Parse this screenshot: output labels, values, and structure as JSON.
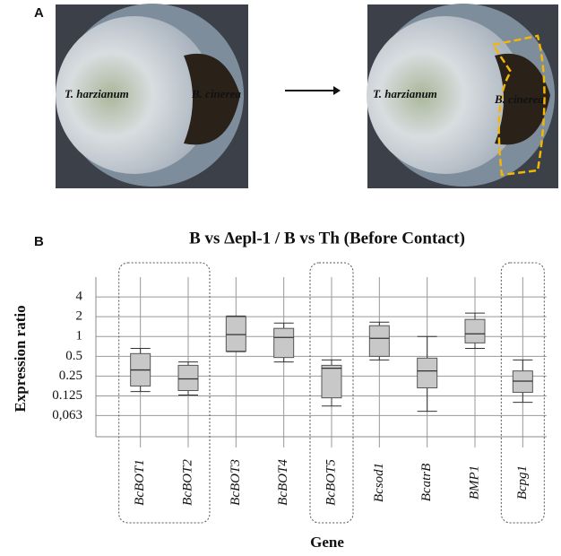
{
  "figure": {
    "panel_labels": [
      "A",
      "B"
    ],
    "photo_labels": [
      "T. harzianum",
      "B. cinerea",
      "T. harzianum",
      "B. cinerea"
    ]
  },
  "chart_data": {
    "type": "box",
    "title": "B vs Δepl-1 / B vs Th (Before Contact)",
    "x_label": "Gene",
    "y_label": "Expression ratio",
    "categories": [
      "BcBOT1",
      "BcBOT2",
      "BcBOT3",
      "BcBOT4",
      "BcBOT5",
      "Bcsod1",
      "BcatrB",
      "BMP1",
      "Bcpg1"
    ],
    "boxes": [
      {
        "min": 0.146,
        "q1": 0.177,
        "median": 0.31,
        "q3": 0.55,
        "max": 0.66
      },
      {
        "min": 0.129,
        "q1": 0.151,
        "median": 0.227,
        "q3": 0.365,
        "max": 0.41
      },
      {
        "min": 0.59,
        "q1": 0.6,
        "median": 1.07,
        "q3": 2.0,
        "max": 2.05
      },
      {
        "min": 0.41,
        "q1": 0.48,
        "median": 0.97,
        "q3": 1.33,
        "max": 1.6
      },
      {
        "min": 0.088,
        "q1": 0.117,
        "median": 0.33,
        "q3": 0.365,
        "max": 0.44
      },
      {
        "min": 0.44,
        "q1": 0.5,
        "median": 0.94,
        "q3": 1.46,
        "max": 1.65
      },
      {
        "min": 0.073,
        "q1": 0.166,
        "median": 0.3,
        "q3": 0.47,
        "max": 1.0
      },
      {
        "min": 0.66,
        "q1": 0.8,
        "median": 1.1,
        "q3": 1.82,
        "max": 2.27
      },
      {
        "min": 0.1,
        "q1": 0.142,
        "median": 0.21,
        "q3": 0.3,
        "max": 0.44
      }
    ],
    "color": "#c8c8c8",
    "log_scale": true,
    "grid": true,
    "ylim": [
      0.03,
      8
    ],
    "yticks": [
      {
        "value": 0.063,
        "label": "0,063"
      },
      0.125,
      0.25,
      0.5,
      1,
      2,
      4
    ]
  }
}
